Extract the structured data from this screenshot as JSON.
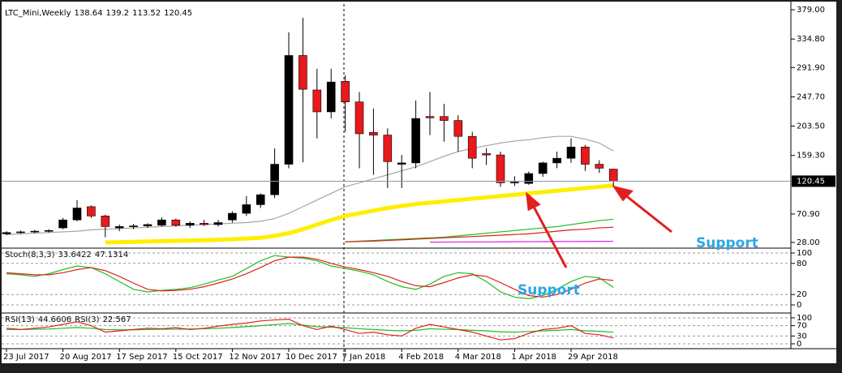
{
  "chart_data": [
    {
      "type": "candlestick",
      "title": "LTC_Mini,Weekly",
      "categories": [
        "23 Jul 2017",
        null,
        null,
        null,
        "20 Aug 2017",
        null,
        null,
        null,
        "17 Sep 2017",
        null,
        null,
        null,
        "15 Oct 2017",
        null,
        null,
        null,
        "12 Nov 2017",
        null,
        null,
        null,
        "10 Dec 2017",
        null,
        null,
        null,
        "7 Jan 2018",
        null,
        null,
        null,
        "4 Feb 2018",
        null,
        null,
        null,
        "4 Mar 2018",
        null,
        null,
        null,
        "1 Apr 2018",
        null,
        null,
        null,
        "29 Apr 2018",
        null,
        null,
        null
      ],
      "open": [
        41,
        43,
        44,
        45,
        50,
        62,
        82,
        68,
        50,
        52,
        53,
        54,
        62,
        54,
        57,
        55,
        62,
        72,
        85,
        100,
        146,
        310,
        258,
        225,
        271,
        240,
        194,
        190,
        146,
        148,
        218,
        218,
        212,
        188,
        162,
        160,
        118,
        117,
        132,
        148,
        155,
        172,
        146,
        138.64
      ],
      "high": [
        45,
        46,
        47,
        48,
        65,
        92,
        84,
        70,
        55,
        56,
        57,
        66,
        64,
        60,
        62,
        62,
        75,
        98,
        102,
        170,
        345,
        367,
        290,
        290,
        280,
        255,
        230,
        200,
        160,
        242,
        255,
        237,
        220,
        195,
        170,
        165,
        128,
        135,
        150,
        165,
        185,
        175,
        152,
        139.2
      ],
      "low": [
        39,
        41,
        42,
        43,
        48,
        60,
        65,
        36,
        45,
        48,
        50,
        52,
        52,
        50,
        53,
        52,
        58,
        68,
        80,
        95,
        140,
        149,
        185,
        215,
        195,
        140,
        130,
        110,
        110,
        140,
        190,
        180,
        165,
        140,
        145,
        112,
        113,
        115,
        127,
        140,
        148,
        136,
        133,
        113.52
      ],
      "close": [
        43,
        44,
        45,
        46,
        62,
        80,
        68,
        52,
        52,
        53,
        55,
        62,
        54,
        57,
        55,
        58,
        72,
        85,
        100,
        146,
        310,
        259,
        225,
        270,
        240,
        192,
        190,
        150,
        148,
        215,
        216,
        212,
        188,
        155,
        160,
        118,
        119,
        132,
        148,
        155,
        172,
        146,
        140,
        120.45
      ],
      "up_color": "#000000",
      "down_color": "#e8191a",
      "series": [
        {
          "color": "#a6a6a6",
          "values": [
            40,
            41,
            42,
            43,
            44,
            45,
            47,
            48,
            49,
            50,
            51,
            52,
            53,
            54,
            55,
            56,
            57,
            58,
            60,
            64,
            72,
            82,
            92,
            102,
            112,
            118,
            124,
            130,
            136,
            142,
            150,
            158,
            165,
            170,
            174,
            178,
            181,
            183,
            186,
            188,
            188,
            184,
            178,
            166
          ]
        },
        {
          "color": "#ffee00",
          "values": [
            null,
            null,
            null,
            null,
            null,
            null,
            null,
            28,
            28.5,
            29,
            29.5,
            30,
            30.5,
            31,
            31.5,
            32,
            33,
            34,
            35,
            38,
            42,
            48,
            55,
            62,
            68,
            72,
            76,
            80,
            83,
            86,
            88,
            90,
            92,
            94,
            96,
            98,
            100,
            102,
            104,
            106,
            108,
            110,
            112,
            114
          ]
        },
        {
          "color": "#22bb22",
          "values": [
            null,
            null,
            null,
            null,
            null,
            null,
            null,
            null,
            null,
            null,
            null,
            null,
            null,
            null,
            null,
            null,
            null,
            null,
            null,
            null,
            null,
            null,
            null,
            null,
            29,
            30,
            31,
            32,
            33,
            34,
            35,
            36,
            38,
            40,
            42,
            44,
            46,
            48,
            50,
            52,
            55,
            58,
            61,
            63
          ]
        },
        {
          "color": "#e02020",
          "values": [
            null,
            null,
            null,
            null,
            null,
            null,
            null,
            null,
            null,
            null,
            null,
            null,
            null,
            null,
            null,
            null,
            null,
            null,
            null,
            null,
            null,
            null,
            null,
            null,
            29,
            29.5,
            30,
            31,
            32,
            33,
            34,
            35,
            36,
            37,
            38,
            39,
            40,
            41,
            43,
            45,
            47,
            48,
            50,
            51
          ]
        },
        {
          "color": "#dd22dd",
          "values": [
            null,
            null,
            null,
            null,
            null,
            null,
            null,
            null,
            null,
            null,
            null,
            null,
            null,
            null,
            null,
            null,
            null,
            null,
            null,
            null,
            null,
            null,
            null,
            null,
            null,
            null,
            null,
            null,
            null,
            null,
            28.5,
            28.6,
            28.7,
            28.8,
            28.9,
            29,
            29.1,
            29.2,
            29.3,
            29.4,
            29.5,
            29.6,
            29.7,
            29.8
          ]
        }
      ],
      "ylim": [
        20.7,
        387.6
      ],
      "yticks": [
        {
          "value": 379,
          "label": "379.00"
        },
        {
          "value": 334.8,
          "label": "334.80"
        },
        {
          "value": 291.9,
          "label": "291.90"
        },
        {
          "value": 247.7,
          "label": "247.70"
        },
        {
          "value": 203.5,
          "label": "203.50"
        },
        {
          "value": 159.3,
          "label": "159.30"
        },
        {
          "value": 70.9,
          "label": "70.90"
        },
        {
          "value": 28,
          "label": "28.00"
        }
      ],
      "annotations": [
        "Support",
        "Support"
      ]
    },
    {
      "type": "line",
      "title": "Stoch(8,3,3)",
      "series": [
        {
          "color": "#22bb22",
          "values": [
            60,
            58,
            55,
            60,
            68,
            75,
            72,
            60,
            45,
            30,
            25,
            28,
            30,
            33,
            40,
            48,
            55,
            70,
            85,
            95,
            92,
            90,
            85,
            75,
            70,
            65,
            58,
            45,
            35,
            30,
            40,
            55,
            62,
            60,
            45,
            25,
            15,
            12,
            18,
            30,
            45,
            55,
            52,
            33.6422
          ]
        },
        {
          "color": "#e02020",
          "values": [
            62,
            60,
            58,
            58,
            62,
            68,
            72,
            66,
            55,
            42,
            30,
            27,
            28,
            30,
            35,
            42,
            50,
            60,
            72,
            85,
            92,
            92,
            88,
            80,
            73,
            68,
            62,
            55,
            45,
            37,
            35,
            43,
            52,
            58,
            55,
            43,
            30,
            18,
            15,
            20,
            30,
            42,
            50,
            47.1314
          ]
        }
      ],
      "ylim": [
        -14,
        107.8
      ],
      "yticks": [
        100,
        80,
        20,
        0
      ]
    },
    {
      "type": "line",
      "series": [
        {
          "name": "RSI(13)",
          "color": "#22bb22",
          "values": [
            55,
            55,
            56,
            57,
            60,
            63,
            60,
            55,
            54,
            54,
            55,
            56,
            56,
            57,
            58,
            60,
            63,
            66,
            70,
            74,
            78,
            72,
            66,
            64,
            62,
            58,
            55,
            52,
            50,
            52,
            58,
            56,
            55,
            52,
            50,
            46,
            45,
            47,
            50,
            52,
            55,
            50,
            48,
            44.6606
          ]
        },
        {
          "name": "RSI(3)",
          "color": "#e02020",
          "values": [
            60,
            55,
            60,
            65,
            75,
            85,
            70,
            45,
            50,
            55,
            60,
            58,
            62,
            55,
            60,
            68,
            75,
            80,
            88,
            92,
            95,
            70,
            55,
            68,
            55,
            40,
            45,
            35,
            30,
            60,
            75,
            65,
            55,
            45,
            30,
            15,
            20,
            40,
            55,
            60,
            70,
            40,
            35,
            22.567
          ]
        }
      ],
      "ylim": [
        -15.6,
        115.6
      ],
      "yticks": [
        100,
        70,
        30,
        0
      ]
    }
  ]
}
